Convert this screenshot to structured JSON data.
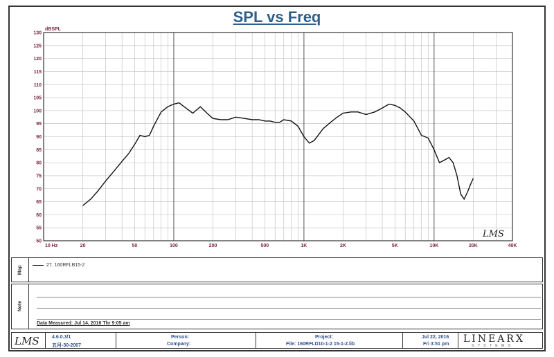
{
  "chart_data": {
    "type": "line",
    "title": "SPL vs Freq",
    "ylabel": "dBSPL",
    "xscale": "log",
    "xlim": [
      10,
      40000
    ],
    "ylim": [
      50,
      130
    ],
    "y_ticks": [
      50,
      55,
      60,
      65,
      70,
      75,
      80,
      85,
      90,
      95,
      100,
      105,
      110,
      115,
      120,
      125,
      130
    ],
    "x_tick_labels": [
      {
        "value": 10,
        "label": "10 Hz"
      },
      {
        "value": 20,
        "label": "20"
      },
      {
        "value": 50,
        "label": "50"
      },
      {
        "value": 100,
        "label": "100"
      },
      {
        "value": 200,
        "label": "200"
      },
      {
        "value": 500,
        "label": "500"
      },
      {
        "value": 1000,
        "label": "1K"
      },
      {
        "value": 2000,
        "label": "2K"
      },
      {
        "value": 5000,
        "label": "5K"
      },
      {
        "value": 10000,
        "label": "10K"
      },
      {
        "value": 20000,
        "label": "20K"
      },
      {
        "value": 40000,
        "label": "40K"
      }
    ],
    "grid": true,
    "series": [
      {
        "name": "27. 160RFLB15-2",
        "x": [
          20,
          23,
          26,
          30,
          35,
          40,
          45,
          50,
          55,
          60,
          65,
          70,
          80,
          90,
          100,
          110,
          120,
          140,
          160,
          180,
          200,
          230,
          260,
          300,
          350,
          400,
          450,
          500,
          550,
          600,
          650,
          700,
          800,
          900,
          1000,
          1100,
          1200,
          1400,
          1600,
          1800,
          2000,
          2300,
          2600,
          3000,
          3500,
          4000,
          4500,
          5000,
          5500,
          6000,
          7000,
          8000,
          9000,
          10000,
          11000,
          12000,
          13000,
          14000,
          15000,
          16000,
          17000,
          18000,
          19000,
          20000
        ],
        "y": [
          63.5,
          66,
          69,
          73,
          77,
          80.5,
          83.5,
          87,
          90.5,
          90,
          90.5,
          94,
          99.5,
          101.5,
          102.5,
          103,
          101.5,
          99,
          101.5,
          99,
          97,
          96.5,
          96.5,
          97.5,
          97,
          96.5,
          96.5,
          96,
          96,
          95.5,
          95.5,
          96.5,
          96,
          94,
          90,
          87.5,
          88.5,
          93,
          95.5,
          97.5,
          99,
          99.5,
          99.5,
          98.5,
          99.5,
          101,
          102.5,
          102,
          101,
          99.5,
          96,
          90.5,
          89.5,
          85,
          80,
          81,
          82,
          80,
          75,
          68,
          66,
          68.5,
          71.5,
          74
        ]
      }
    ]
  },
  "logo_text": "LMS",
  "legend_panel": {
    "label": "Map",
    "entry": "27. 160RFLB15-2"
  },
  "notes_panel": {
    "label": "Note",
    "measured": "Data Measured: Jul 14, 2016  Thr  9:05 am"
  },
  "footer": {
    "logo": "LMS",
    "version": "4.6.0.3/1",
    "version_date": "五月-30-2007",
    "person_label": "Person:",
    "company_label": "Company:",
    "project_label": "Project:",
    "file_label": "File: 160RFLD10-1-2 15-1-2.lib",
    "date": "Jul 22, 2016",
    "time": "Fri  3:51 pm",
    "brand": "LINEARX",
    "brand_sub": "S Y S T E M S"
  }
}
